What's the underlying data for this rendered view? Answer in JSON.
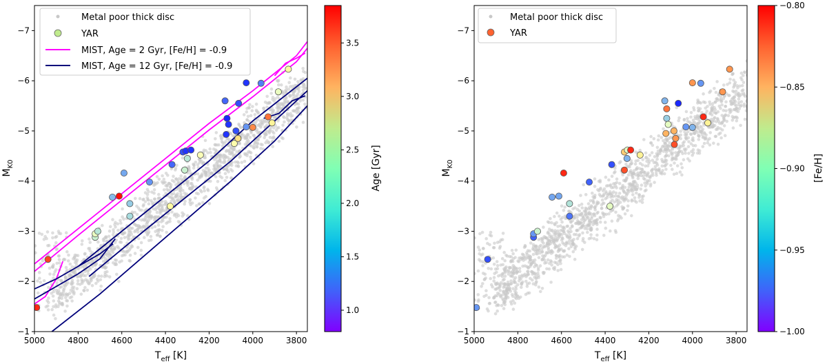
{
  "chart_data": [
    {
      "type": "scatter",
      "panel": "left",
      "xlabel_main": "T",
      "xlabel_sub": "eff",
      "xlabel_unit": " [K]",
      "ylabel_main": "M",
      "ylabel_sub": "K0",
      "xlim": [
        5000,
        3750
      ],
      "ylim": [
        -1,
        -7.5
      ],
      "xticks": [
        5000,
        4800,
        4600,
        4400,
        4200,
        4000,
        3800
      ],
      "yticks": [
        -1,
        -2,
        -3,
        -4,
        -5,
        -6,
        -7
      ],
      "tick_labels_x": [
        "5000",
        "4800",
        "4600",
        "4400",
        "4200",
        "4000",
        "3800"
      ],
      "tick_labels_y": [
        "−1",
        "−2",
        "−3",
        "−4",
        "−5",
        "−6",
        "−7"
      ],
      "legend": {
        "position": "upper-left",
        "entries": [
          {
            "label": "Metal poor thick disc",
            "kind": "background"
          },
          {
            "label": "YAR",
            "kind": "marker"
          },
          {
            "label": "MIST, Age = 2 Gyr, [Fe/H] = -0.9",
            "kind": "line",
            "color": "#ff00ff"
          },
          {
            "label": "MIST, Age = 12 Gyr, [Fe/H] = -0.9",
            "kind": "line",
            "color": "#00007a"
          }
        ]
      },
      "colorbar": {
        "label": "Age [Gyr]",
        "range": [
          0.8,
          3.85
        ],
        "ticks": [
          1.0,
          1.5,
          2.0,
          2.5,
          3.0,
          3.5
        ],
        "tick_labels": [
          "1.0",
          "1.5",
          "2.0",
          "2.5",
          "3.0",
          "3.5"
        ],
        "colormap": "rainbow"
      },
      "isochrones": [
        {
          "name": "MIST, Age = 2 Gyr, [Fe/H] = -0.9",
          "color": "#ff00ff",
          "segments": [
            [
              [
                5000,
                -2.35
              ],
              [
                4800,
                -3.05
              ],
              [
                4600,
                -3.75
              ],
              [
                4400,
                -4.45
              ],
              [
                4200,
                -5.15
              ],
              [
                4000,
                -5.8
              ],
              [
                3800,
                -6.5
              ],
              [
                3750,
                -6.78
              ]
            ],
            [
              [
                5000,
                -2.2
              ],
              [
                4800,
                -2.92
              ],
              [
                4600,
                -3.62
              ],
              [
                4400,
                -4.32
              ],
              [
                4200,
                -5.02
              ],
              [
                4000,
                -5.68
              ],
              [
                3800,
                -6.38
              ],
              [
                3750,
                -6.65
              ]
            ],
            [
              [
                5000,
                -1.55
              ],
              [
                4950,
                -1.7
              ],
              [
                4900,
                -2.05
              ],
              [
                4870,
                -2.4
              ]
            ],
            [
              [
                3900,
                -6.1
              ],
              [
                3850,
                -6.35
              ],
              [
                3800,
                -6.45
              ],
              [
                3760,
                -6.55
              ]
            ]
          ]
        },
        {
          "name": "MIST, Age = 12 Gyr, [Fe/H] = -0.9",
          "color": "#00007a",
          "segments": [
            [
              [
                4920,
                -1.0
              ],
              [
                4700,
                -1.75
              ],
              [
                4500,
                -2.5
              ],
              [
                4300,
                -3.25
              ],
              [
                4100,
                -4.0
              ],
              [
                3900,
                -4.8
              ],
              [
                3750,
                -5.5
              ]
            ],
            [
              [
                4750,
                -2.1
              ],
              [
                4500,
                -3.0
              ],
              [
                4300,
                -3.7
              ],
              [
                4100,
                -4.4
              ],
              [
                3900,
                -5.2
              ],
              [
                3750,
                -5.8
              ]
            ],
            [
              [
                4800,
                -2.3
              ],
              [
                4600,
                -3.0
              ],
              [
                4400,
                -3.7
              ],
              [
                4200,
                -4.4
              ],
              [
                4000,
                -5.2
              ],
              [
                3750,
                -6.05
              ]
            ],
            [
              [
                5000,
                -1.85
              ],
              [
                4900,
                -2.05
              ],
              [
                4800,
                -2.3
              ],
              [
                4700,
                -2.55
              ],
              [
                4640,
                -2.75
              ]
            ],
            [
              [
                5000,
                -1.65
              ],
              [
                4900,
                -1.9
              ],
              [
                4800,
                -2.15
              ],
              [
                4700,
                -2.45
              ],
              [
                4630,
                -2.85
              ]
            ],
            [
              [
                3950,
                -5.25
              ],
              [
                3880,
                -5.35
              ],
              [
                3820,
                -5.6
              ],
              [
                3760,
                -5.7
              ]
            ]
          ]
        }
      ],
      "points": [
        {
          "teff": 4990,
          "mk": -1.48,
          "age": 3.7
        },
        {
          "teff": 4938,
          "mk": -2.44,
          "age": 3.6
        },
        {
          "teff": 4722,
          "mk": -2.88,
          "age": 2.0
        },
        {
          "teff": 4722,
          "mk": -2.95,
          "age": 2.2
        },
        {
          "teff": 4710,
          "mk": -3.0,
          "age": 1.9
        },
        {
          "teff": 4643,
          "mk": -3.68,
          "age": 1.6
        },
        {
          "teff": 4612,
          "mk": -3.7,
          "age": 3.8
        },
        {
          "teff": 4590,
          "mk": -4.16,
          "age": 1.5
        },
        {
          "teff": 4563,
          "mk": -3.3,
          "age": 1.8
        },
        {
          "teff": 4563,
          "mk": -3.55,
          "age": 1.7
        },
        {
          "teff": 4473,
          "mk": -3.98,
          "age": 1.4
        },
        {
          "teff": 4378,
          "mk": -3.5,
          "age": 2.5
        },
        {
          "teff": 4370,
          "mk": -4.33,
          "age": 1.2
        },
        {
          "teff": 4320,
          "mk": -4.58,
          "age": 1.1
        },
        {
          "teff": 4312,
          "mk": -4.22,
          "age": 2.0
        },
        {
          "teff": 4307,
          "mk": -4.6,
          "age": 1.0
        },
        {
          "teff": 4300,
          "mk": -4.45,
          "age": 1.9
        },
        {
          "teff": 4283,
          "mk": -4.62,
          "age": 1.0
        },
        {
          "teff": 4240,
          "mk": -4.52,
          "age": 2.3
        },
        {
          "teff": 4127,
          "mk": -5.6,
          "age": 1.2
        },
        {
          "teff": 4122,
          "mk": -4.93,
          "age": 1.0
        },
        {
          "teff": 4118,
          "mk": -5.25,
          "age": 0.95
        },
        {
          "teff": 4111,
          "mk": -5.13,
          "age": 1.0
        },
        {
          "teff": 4085,
          "mk": -4.75,
          "age": 2.4
        },
        {
          "teff": 4077,
          "mk": -5.0,
          "age": 1.1
        },
        {
          "teff": 4068,
          "mk": -4.85,
          "age": 2.8
        },
        {
          "teff": 4065,
          "mk": -5.55,
          "age": 1.1
        },
        {
          "teff": 4030,
          "mk": -5.08,
          "age": 1.4
        },
        {
          "teff": 4000,
          "mk": -5.07,
          "age": 3.3
        },
        {
          "teff": 4030,
          "mk": -5.96,
          "age": 1.0
        },
        {
          "teff": 3962,
          "mk": -5.95,
          "age": 1.3
        },
        {
          "teff": 3930,
          "mk": -5.28,
          "age": 3.4
        },
        {
          "teff": 3912,
          "mk": -5.16,
          "age": 2.6
        },
        {
          "teff": 3883,
          "mk": -5.78,
          "age": 2.2
        },
        {
          "teff": 3837,
          "mk": -6.23,
          "age": 2.5
        }
      ]
    },
    {
      "type": "scatter",
      "panel": "right",
      "xlabel_main": "T",
      "xlabel_sub": "eff",
      "xlabel_unit": " [K]",
      "ylabel_main": "M",
      "ylabel_sub": "K0",
      "xlim": [
        5000,
        3750
      ],
      "ylim": [
        -1,
        -7.5
      ],
      "xticks": [
        5000,
        4800,
        4600,
        4400,
        4200,
        4000,
        3800
      ],
      "yticks": [
        -1,
        -2,
        -3,
        -4,
        -5,
        -6,
        -7
      ],
      "tick_labels_x": [
        "5000",
        "4800",
        "4600",
        "4400",
        "4200",
        "4000",
        "3800"
      ],
      "tick_labels_y": [
        "−1",
        "−2",
        "−3",
        "−4",
        "−5",
        "−6",
        "−7"
      ],
      "legend": {
        "position": "upper-left",
        "entries": [
          {
            "label": "Metal poor thick disc",
            "kind": "background"
          },
          {
            "label": "YAR",
            "kind": "marker"
          }
        ]
      },
      "colorbar": {
        "label": "[Fe/H]",
        "range": [
          -1.0,
          -0.8
        ],
        "ticks": [
          -1.0,
          -0.95,
          -0.9,
          -0.85,
          -0.8
        ],
        "tick_labels": [
          "−1.00",
          "−0.95",
          "−0.90",
          "−0.85",
          "−0.80"
        ],
        "colormap": "rainbow"
      },
      "points": [
        {
          "teff": 4990,
          "mk": -1.48,
          "feh": -0.96
        },
        {
          "teff": 4938,
          "mk": -2.44,
          "feh": -0.98
        },
        {
          "teff": 4728,
          "mk": -2.88,
          "feh": -0.975
        },
        {
          "teff": 4728,
          "mk": -2.95,
          "feh": -0.96
        },
        {
          "teff": 4710,
          "mk": -3.0,
          "feh": -0.92
        },
        {
          "teff": 4643,
          "mk": -3.68,
          "feh": -0.955
        },
        {
          "teff": 4612,
          "mk": -3.7,
          "feh": -0.955
        },
        {
          "teff": 4590,
          "mk": -4.16,
          "feh": -0.81
        },
        {
          "teff": 4563,
          "mk": -3.3,
          "feh": -0.97
        },
        {
          "teff": 4563,
          "mk": -3.55,
          "feh": -0.93
        },
        {
          "teff": 4473,
          "mk": -3.98,
          "feh": -0.975
        },
        {
          "teff": 4378,
          "mk": -3.5,
          "feh": -0.91
        },
        {
          "teff": 4370,
          "mk": -4.33,
          "feh": -0.98
        },
        {
          "teff": 4312,
          "mk": -4.58,
          "feh": -0.86
        },
        {
          "teff": 4312,
          "mk": -4.22,
          "feh": -0.82
        },
        {
          "teff": 4300,
          "mk": -4.45,
          "feh": -0.95
        },
        {
          "teff": 4298,
          "mk": -4.62,
          "feh": -0.91
        },
        {
          "teff": 4283,
          "mk": -4.62,
          "feh": -0.81
        },
        {
          "teff": 4240,
          "mk": -4.52,
          "feh": -0.88
        },
        {
          "teff": 4127,
          "mk": -5.6,
          "feh": -0.95
        },
        {
          "teff": 4122,
          "mk": -4.95,
          "feh": -0.85
        },
        {
          "teff": 4118,
          "mk": -5.25,
          "feh": -0.94
        },
        {
          "teff": 4111,
          "mk": -5.13,
          "feh": -0.91
        },
        {
          "teff": 4118,
          "mk": -5.44,
          "feh": -0.83
        },
        {
          "teff": 4085,
          "mk": -5.0,
          "feh": -0.85
        },
        {
          "teff": 4077,
          "mk": -4.85,
          "feh": -0.84
        },
        {
          "teff": 4083,
          "mk": -4.73,
          "feh": -0.82
        },
        {
          "teff": 4065,
          "mk": -5.55,
          "feh": -0.99
        },
        {
          "teff": 4030,
          "mk": -5.08,
          "feh": -0.96
        },
        {
          "teff": 4000,
          "mk": -5.07,
          "feh": -0.95
        },
        {
          "teff": 4000,
          "mk": -5.96,
          "feh": -0.84
        },
        {
          "teff": 3962,
          "mk": -5.95,
          "feh": -0.96
        },
        {
          "teff": 3950,
          "mk": -5.28,
          "feh": -0.81
        },
        {
          "teff": 3930,
          "mk": -5.16,
          "feh": -0.88
        },
        {
          "teff": 3862,
          "mk": -5.78,
          "feh": -0.84
        },
        {
          "teff": 3830,
          "mk": -6.23,
          "feh": -0.84
        }
      ]
    }
  ]
}
